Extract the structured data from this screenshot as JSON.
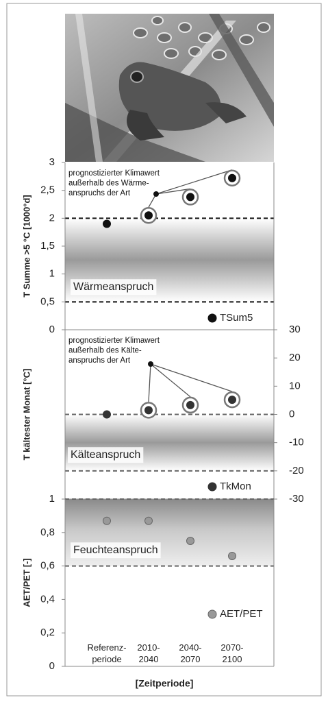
{
  "chart_data": [
    {
      "type": "scatter",
      "ylabel": "T Summe >5 °C  [1000°d]",
      "ylim": [
        0,
        3
      ],
      "yticks": [
        0,
        {
          "value": 0.5,
          "label": "0,5"
        },
        1,
        {
          "value": 1.5,
          "label": "1,5"
        },
        2,
        {
          "value": 2.5,
          "label": "2,5"
        },
        3
      ],
      "y_axis": "left",
      "series": [
        {
          "name": "TSum5",
          "color": "#111111",
          "values": [
            1.9,
            2.05,
            2.38,
            2.72
          ]
        }
      ],
      "range": [
        0.5,
        2
      ],
      "range_label": "Wärmeanspruch",
      "annotation": [
        "prognostizierter Klimawert",
        "außerhalb des Wärme-",
        "anspruchs der Art"
      ],
      "legend": "lower right"
    },
    {
      "type": "scatter",
      "ylabel": "T kältester Monat [°C]",
      "ylim": [
        -30,
        30
      ],
      "yticks": [
        -30,
        -20,
        -10,
        0,
        10,
        20,
        30
      ],
      "y_axis": "right",
      "series": [
        {
          "name": "TkMon",
          "color": "#333333",
          "values": [
            0,
            1.5,
            3.3,
            5.2
          ]
        }
      ],
      "range": [
        -20,
        0
      ],
      "range_label": "Kälteanspruch",
      "annotation": [
        "prognostizierter Klimawert",
        "außerhalb des Kälte-",
        "anspruchs der Art"
      ],
      "legend": "lower right"
    },
    {
      "type": "scatter",
      "ylabel": "AET/PET [-]",
      "ylim": [
        0,
        1
      ],
      "yticks": [
        0,
        {
          "value": 0.2,
          "label": "0,2"
        },
        {
          "value": 0.4,
          "label": "0,4"
        },
        {
          "value": 0.6,
          "label": "0,6"
        },
        {
          "value": 0.8,
          "label": "0,8"
        },
        1
      ],
      "y_axis": "left",
      "categories": [
        "Referenz-\nperiode",
        "2010-\n2040",
        "2040-\n2070",
        "2070-\n2100"
      ],
      "xlabel": "[Zeitperiode]",
      "series": [
        {
          "name": "AET/PET",
          "color": "#999999",
          "values": [
            0.87,
            0.87,
            0.75,
            0.66
          ]
        }
      ],
      "range": [
        0.6,
        1
      ],
      "range_label": "Feuchteanspruch",
      "legend": "lower right"
    }
  ]
}
